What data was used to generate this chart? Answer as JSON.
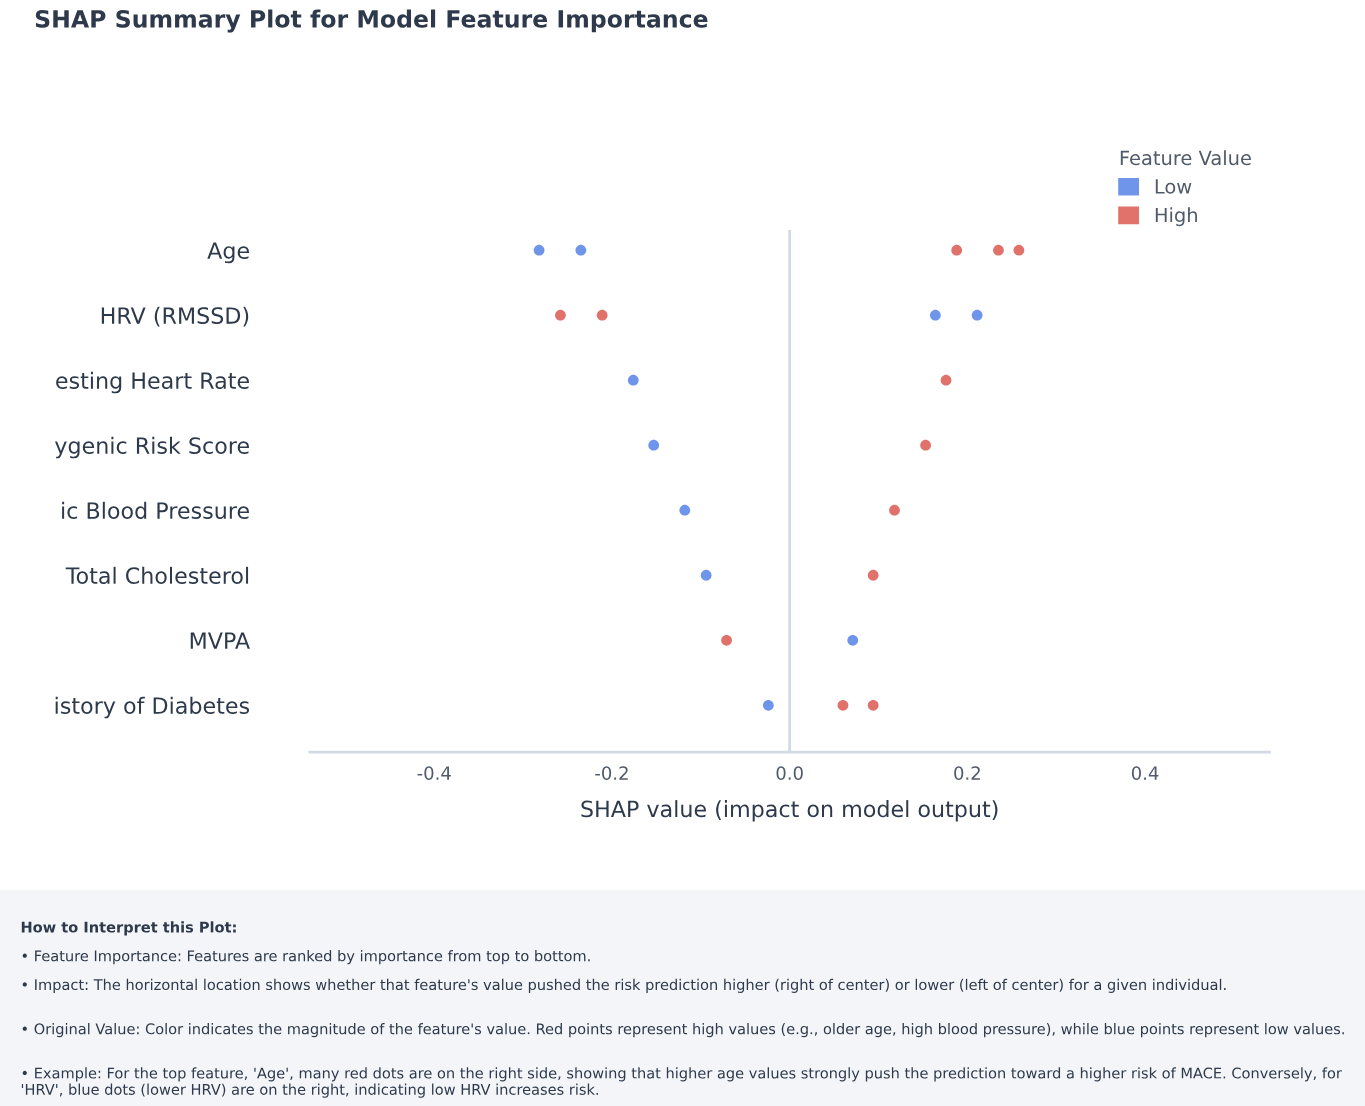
{
  "chart_data": {
    "type": "scatter",
    "orientation": "horizontal",
    "title": "SHAP Summary Plot for Model Feature Importance",
    "xlabel": "SHAP value (impact on model output)",
    "legend_title": "Feature Value",
    "legend": "top right",
    "marker": "circle",
    "grid": false,
    "categories": [
      "Age",
      "HRV (RMSSD)",
      "esting Heart Rate",
      "ygenic Risk Score",
      "ic Blood Pressure",
      "Total Cholesterol",
      "MVPA",
      "istory of Diabetes"
    ],
    "series": [
      {
        "name": "Low",
        "color": "#6f95ea",
        "values": [
          -0.282,
          0.164,
          -0.176,
          -0.153,
          -0.118,
          -0.094,
          0.071,
          -0.024
        ]
      },
      {
        "color": "#6f95ea",
        "values": [
          -0.235,
          0.211,
          null,
          null,
          null,
          null,
          null,
          null
        ]
      },
      {
        "name": "High",
        "color": "#e0716b",
        "values": [
          0.188,
          -0.258,
          0.176,
          0.153,
          0.118,
          0.094,
          -0.071,
          0.06
        ]
      },
      {
        "color": "#e0716b",
        "values": [
          0.235,
          -0.211,
          null,
          null,
          null,
          null,
          null,
          0.094
        ]
      },
      {
        "color": "#e0716b",
        "values": [
          0.258,
          null,
          null,
          null,
          null,
          null,
          null,
          null
        ]
      }
    ],
    "xlim": [
      -0.54,
      0.54
    ],
    "xticks": [
      -0.4,
      -0.2,
      {
        "value": 0,
        "label": "0.0"
      },
      0.2,
      0.4
    ],
    "ref_lines": [
      {
        "axis": "x",
        "value": 0,
        "color": "#d3dae4"
      }
    ],
    "annotations": [
      "How to Interpret this Plot:",
      "• Feature Importance: Features are ranked by importance from top to bottom.",
      "• Impact: The horizontal location shows whether that feature's value pushed the risk prediction higher (right of center) or lower (left of center) for a given individual.",
      "• Original Value: Color indicates the magnitude of the feature's value. Red points represent high values (e.g., older age, high blood pressure), while blue points represent low values.",
      "• Example: For the top feature, 'Age', many red dots are on the right side, showing that higher age values strongly push the prediction toward a higher risk of MACE. Conversely, for 'HRV', blue dots (lower HRV) are on the right, indicating low HRV increases risk."
    ]
  }
}
